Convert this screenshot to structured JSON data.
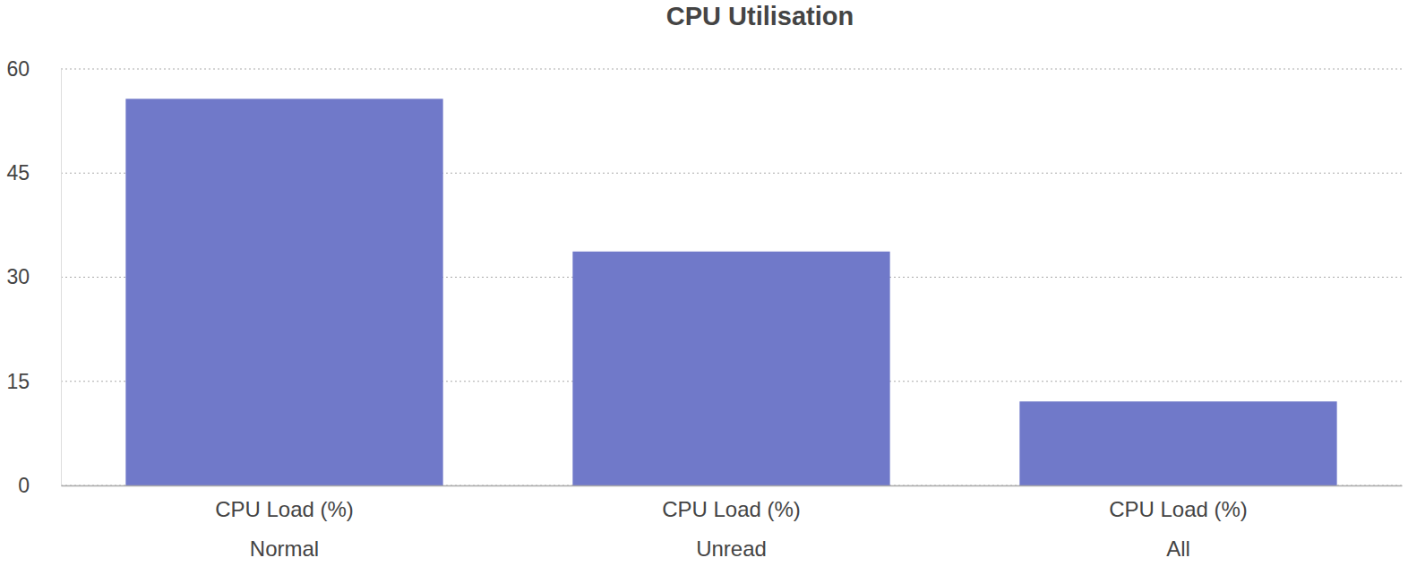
{
  "chart_data": {
    "type": "bar",
    "title": "CPU Utilisation",
    "categories": [
      "Normal",
      "Unread",
      "All"
    ],
    "series": [
      {
        "name": "CPU Load (%)",
        "color": "#7079c9",
        "values": [
          55.7,
          33.7,
          12.1
        ]
      }
    ],
    "ylim": [
      0,
      60
    ],
    "yticks": [
      0,
      15,
      30,
      45,
      60
    ],
    "grid": true
  }
}
